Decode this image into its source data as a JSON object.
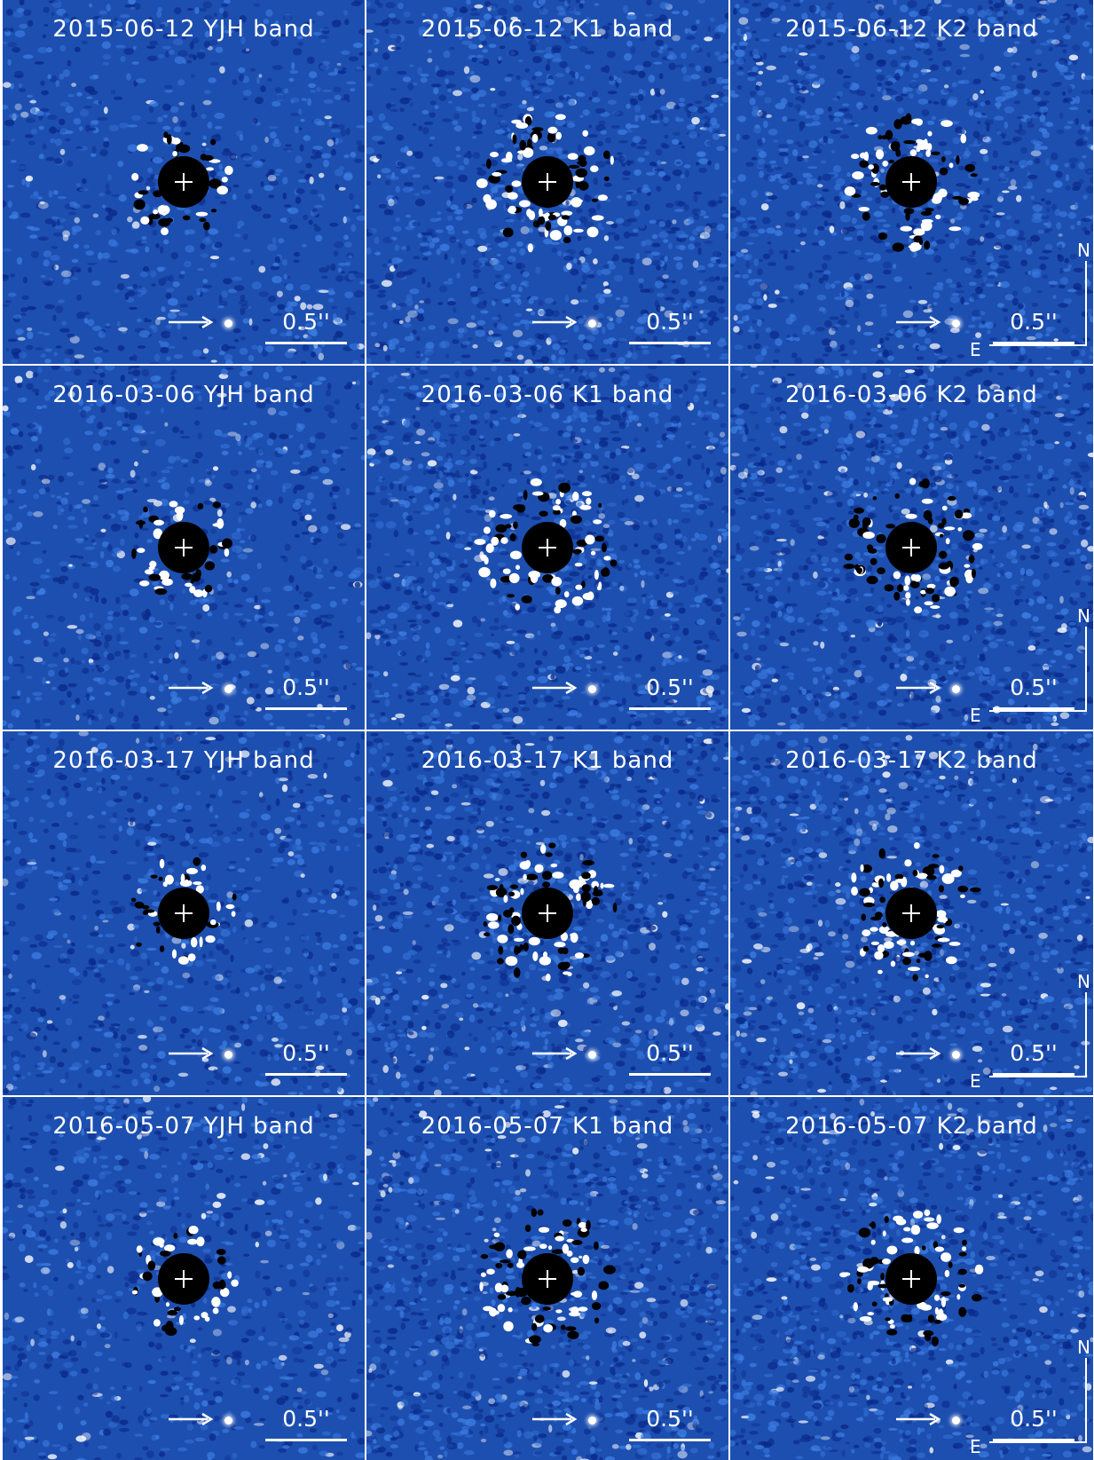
{
  "figure": {
    "background_color": "#1d4fb0",
    "speckle_colors": [
      "#0a2a8a",
      "#3b7be0",
      "#ffffff"
    ],
    "scale_bar_label": "0.5''",
    "compass": {
      "north": "N",
      "east": "E"
    },
    "panels": [
      {
        "id": "r1c1",
        "title": "2015-06-12 YJH band",
        "band": "YJH",
        "compass": false
      },
      {
        "id": "r1c2",
        "title": "2015-06-12 K1 band",
        "band": "K1",
        "compass": false
      },
      {
        "id": "r1c3",
        "title": "2015-06-12 K2 band",
        "band": "K2",
        "compass": true
      },
      {
        "id": "r2c1",
        "title": "2016-03-06 YJH band",
        "band": "YJH",
        "compass": false
      },
      {
        "id": "r2c2",
        "title": "2016-03-06 K1 band",
        "band": "K1",
        "compass": false
      },
      {
        "id": "r2c3",
        "title": "2016-03-06 K2 band",
        "band": "K2",
        "compass": true
      },
      {
        "id": "r3c1",
        "title": "2016-03-17 YJH band",
        "band": "YJH",
        "compass": false
      },
      {
        "id": "r3c2",
        "title": "2016-03-17 K1 band",
        "band": "K1",
        "compass": false
      },
      {
        "id": "r3c3",
        "title": "2016-03-17 K2 band",
        "band": "K2",
        "compass": true
      },
      {
        "id": "r4c1",
        "title": "2016-05-07 YJH band",
        "band": "YJH",
        "compass": false
      },
      {
        "id": "r4c2",
        "title": "2016-05-07 K1 band",
        "band": "K1",
        "compass": false
      },
      {
        "id": "r4c3",
        "title": "2016-05-07 K2 band",
        "band": "K2",
        "compass": true
      }
    ]
  }
}
